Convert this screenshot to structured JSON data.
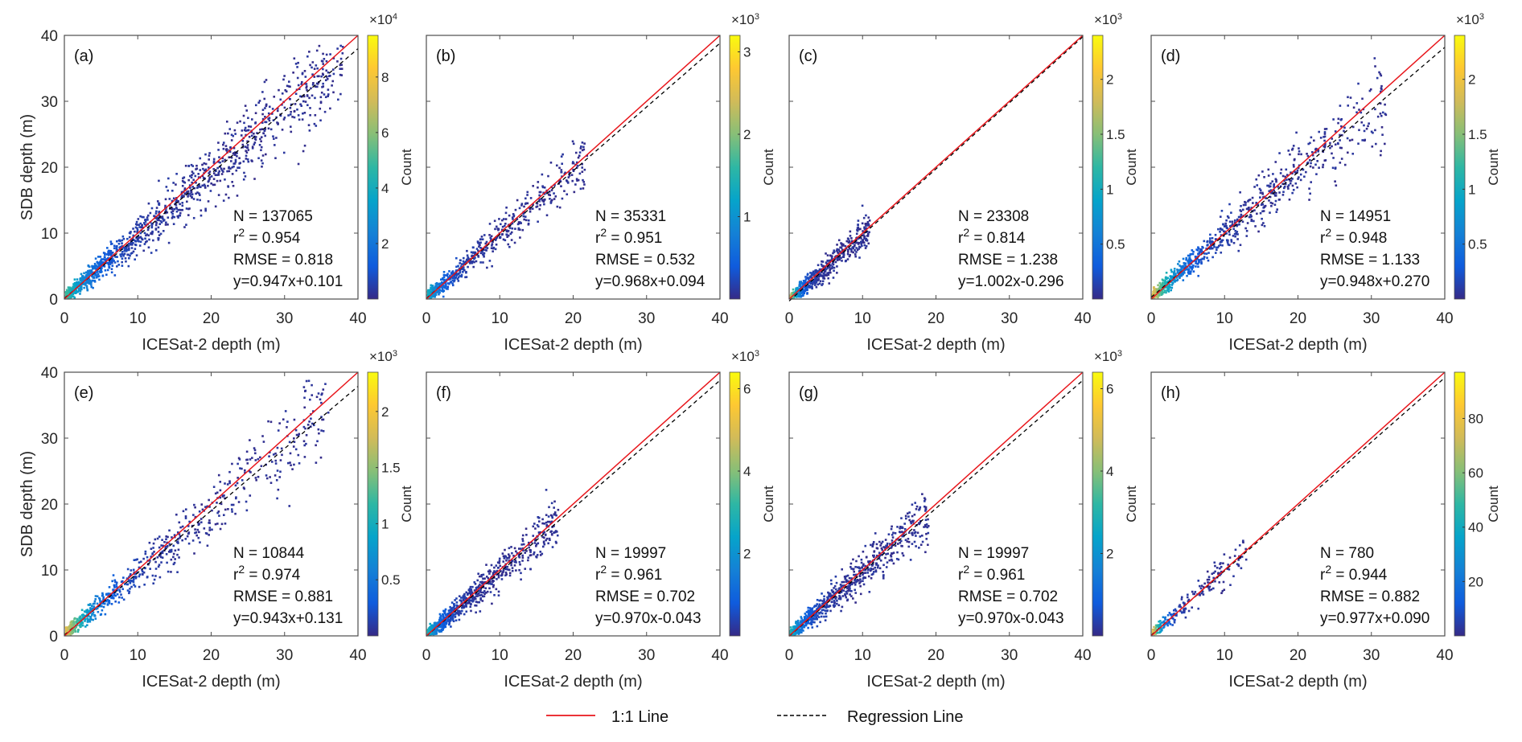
{
  "chart_data": [
    {
      "panel": "(a)",
      "type": "scatter",
      "subtype": "density-scatter",
      "xlabel": "ICESat-2 depth (m)",
      "ylabel": "SDB depth (m)",
      "xlim": [
        0,
        40
      ],
      "ylim": [
        0,
        40
      ],
      "xticks": [
        "0",
        "10",
        "20",
        "30",
        "40"
      ],
      "yticks": [
        "0",
        "10",
        "20",
        "30",
        "40"
      ],
      "stats": {
        "n": "N = 137065",
        "r2": " = 0.954",
        "rmse": "RMSE = 0.818",
        "equation": "y=0.947x+0.101"
      },
      "regression": {
        "slope": 0.947,
        "intercept": 0.101
      },
      "data_extent_x": [
        0,
        38
      ],
      "colorbar": {
        "label": "Count",
        "multiplier": "×10",
        "exponent": "4",
        "max": 9.5,
        "ticks": [
          2,
          4,
          6,
          8
        ],
        "tick_labels": [
          "2",
          "4",
          "6",
          "8"
        ]
      }
    },
    {
      "panel": "(b)",
      "type": "scatter",
      "subtype": "density-scatter",
      "xlabel": "ICESat-2 depth (m)",
      "ylabel": "",
      "xlim": [
        0,
        40
      ],
      "ylim": [
        0,
        40
      ],
      "xticks": [
        "0",
        "10",
        "20",
        "30",
        "40"
      ],
      "stats": {
        "n": "N = 35331",
        "r2": " = 0.951",
        "rmse": "RMSE = 0.532",
        "equation": "y=0.968x+0.094"
      },
      "regression": {
        "slope": 0.968,
        "intercept": 0.094
      },
      "data_extent_x": [
        0,
        22
      ],
      "colorbar": {
        "label": "Count",
        "multiplier": "×10",
        "exponent": "3",
        "max": 3.2,
        "ticks": [
          1,
          2,
          3
        ],
        "tick_labels": [
          "1",
          "2",
          "3"
        ]
      }
    },
    {
      "panel": "(c)",
      "type": "scatter",
      "subtype": "density-scatter",
      "xlabel": "ICESat-2 depth (m)",
      "ylabel": "",
      "xlim": [
        0,
        40
      ],
      "ylim": [
        0,
        40
      ],
      "xticks": [
        "0",
        "10",
        "20",
        "30",
        "40"
      ],
      "stats": {
        "n": "N = 23308",
        "r2": " = 0.814",
        "rmse": "RMSE = 1.238",
        "equation": "y=1.002x-0.296"
      },
      "regression": {
        "slope": 1.002,
        "intercept": -0.296
      },
      "data_extent_x": [
        0,
        11
      ],
      "colorbar": {
        "label": "Count",
        "multiplier": "×10",
        "exponent": "3",
        "max": 2.4,
        "ticks": [
          0.5,
          1,
          1.5,
          2
        ],
        "tick_labels": [
          "0.5",
          "1",
          "1.5",
          "2"
        ]
      }
    },
    {
      "panel": "(d)",
      "type": "scatter",
      "subtype": "density-scatter",
      "xlabel": "ICESat-2 depth (m)",
      "ylabel": "",
      "xlim": [
        0,
        40
      ],
      "ylim": [
        0,
        40
      ],
      "xticks": [
        "0",
        "10",
        "20",
        "30",
        "40"
      ],
      "stats": {
        "n": "N = 14951",
        "r2": " = 0.948",
        "rmse": "RMSE = 1.133",
        "equation": "y=0.948x+0.270"
      },
      "regression": {
        "slope": 0.948,
        "intercept": 0.27
      },
      "data_extent_x": [
        0,
        32
      ],
      "colorbar": {
        "label": "Count",
        "multiplier": "×10",
        "exponent": "3",
        "max": 2.4,
        "ticks": [
          0.5,
          1,
          1.5,
          2
        ],
        "tick_labels": [
          "0.5",
          "1",
          "1.5",
          "2"
        ]
      }
    },
    {
      "panel": "(e)",
      "type": "scatter",
      "subtype": "density-scatter",
      "xlabel": "ICESat-2 depth (m)",
      "ylabel": "SDB depth (m)",
      "xlim": [
        0,
        40
      ],
      "ylim": [
        0,
        40
      ],
      "xticks": [
        "0",
        "10",
        "20",
        "30",
        "40"
      ],
      "yticks": [
        "0",
        "10",
        "20",
        "30",
        "40"
      ],
      "stats": {
        "n": "N = 10844",
        "r2": " = 0.974",
        "rmse": "RMSE = 0.881",
        "equation": "y=0.943x+0.131"
      },
      "regression": {
        "slope": 0.943,
        "intercept": 0.131
      },
      "data_extent_x": [
        0,
        36
      ],
      "colorbar": {
        "label": "Count",
        "multiplier": "×10",
        "exponent": "3",
        "max": 2.35,
        "ticks": [
          0.5,
          1,
          1.5,
          2
        ],
        "tick_labels": [
          "0.5",
          "1",
          "1.5",
          "2"
        ]
      }
    },
    {
      "panel": "(f)",
      "type": "scatter",
      "subtype": "density-scatter",
      "xlabel": "ICESat-2 depth (m)",
      "ylabel": "",
      "xlim": [
        0,
        40
      ],
      "ylim": [
        0,
        40
      ],
      "xticks": [
        "0",
        "10",
        "20",
        "30",
        "40"
      ],
      "stats": {
        "n": "N = 19997",
        "r2": " = 0.961",
        "rmse": "RMSE = 0.702",
        "equation": "y=0.970x-0.043"
      },
      "regression": {
        "slope": 0.97,
        "intercept": -0.043
      },
      "data_extent_x": [
        0,
        18
      ],
      "colorbar": {
        "label": "Count",
        "multiplier": "×10",
        "exponent": "3",
        "max": 6.4,
        "ticks": [
          2,
          4,
          6
        ],
        "tick_labels": [
          "2",
          "4",
          "6"
        ]
      }
    },
    {
      "panel": "(g)",
      "type": "scatter",
      "subtype": "density-scatter",
      "xlabel": "ICESat-2 depth (m)",
      "ylabel": "",
      "xlim": [
        0,
        40
      ],
      "ylim": [
        0,
        40
      ],
      "xticks": [
        "0",
        "10",
        "20",
        "30",
        "40"
      ],
      "stats": {
        "n": "N = 19997",
        "r2": " = 0.961",
        "rmse": "RMSE = 0.702",
        "equation": "y=0.970x-0.043"
      },
      "regression": {
        "slope": 0.97,
        "intercept": -0.043
      },
      "data_extent_x": [
        0,
        19
      ],
      "colorbar": {
        "label": "Count",
        "multiplier": "×10",
        "exponent": "3",
        "max": 6.4,
        "ticks": [
          2,
          4,
          6
        ],
        "tick_labels": [
          "2",
          "4",
          "6"
        ]
      }
    },
    {
      "panel": "(h)",
      "type": "scatter",
      "subtype": "density-scatter",
      "xlabel": "ICESat-2 depth (m)",
      "ylabel": "",
      "xlim": [
        0,
        40
      ],
      "ylim": [
        0,
        40
      ],
      "xticks": [
        "0",
        "10",
        "20",
        "30",
        "40"
      ],
      "stats": {
        "n": "N = 780",
        "r2": " = 0.944",
        "rmse": "RMSE = 0.882",
        "equation": "y=0.977x+0.090"
      },
      "regression": {
        "slope": 0.977,
        "intercept": 0.09
      },
      "data_extent_x": [
        0,
        13
      ],
      "colorbar": {
        "label": "Count",
        "multiplier": "",
        "exponent": "",
        "max": 97,
        "ticks": [
          20,
          40,
          60,
          80
        ],
        "tick_labels": [
          "20",
          "40",
          "60",
          "80"
        ]
      }
    }
  ],
  "r_label": "r",
  "r_sup": "2",
  "legend": {
    "position": "bottom-center",
    "items": [
      {
        "label": "1:1 Line",
        "color": "#e8161b",
        "style": "solid"
      },
      {
        "label": "Regression Line",
        "color": "#000000",
        "style": "dashed"
      }
    ]
  },
  "colormap": [
    "#352a87",
    "#0f5cdd",
    "#1481d6",
    "#06a4ca",
    "#2eb7a4",
    "#87bf77",
    "#d1bb59",
    "#fec832",
    "#f9fb0e"
  ]
}
